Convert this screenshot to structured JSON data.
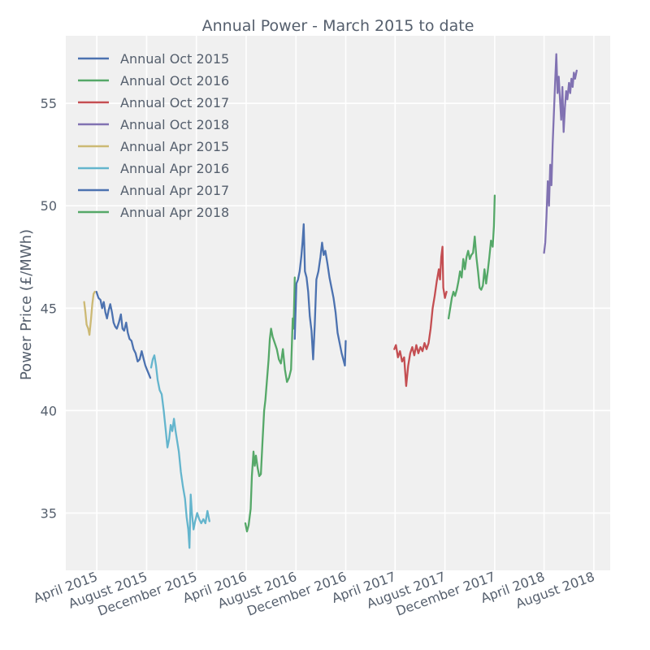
{
  "chart_data": {
    "type": "line",
    "title": "Annual Power - March 2015 to date",
    "xlabel": "",
    "ylabel": "Power Price (£/MWh)",
    "ylim": [
      32.2,
      58.3
    ],
    "xlim": [
      "2015-01-15",
      "2018-09-10"
    ],
    "yticks": [
      35,
      40,
      45,
      50,
      55
    ],
    "xticks": [
      {
        "date": "2015-04-01",
        "label": "April 2015"
      },
      {
        "date": "2015-08-01",
        "label": "August 2015"
      },
      {
        "date": "2015-12-01",
        "label": "December 2015"
      },
      {
        "date": "2016-04-01",
        "label": "April 2016"
      },
      {
        "date": "2016-08-01",
        "label": "August 2016"
      },
      {
        "date": "2016-12-01",
        "label": "December 2016"
      },
      {
        "date": "2017-04-01",
        "label": "April 2017"
      },
      {
        "date": "2017-08-01",
        "label": "August 2017"
      },
      {
        "date": "2017-12-01",
        "label": "December 2017"
      },
      {
        "date": "2018-04-01",
        "label": "April 2018"
      },
      {
        "date": "2018-08-01",
        "label": "August 2018"
      }
    ],
    "grid": true,
    "legend_position": "top-left",
    "series": [
      {
        "name": "Annual Oct 2015",
        "color": "#4c72b0",
        "points": [
          [
            "2015-03-31",
            45.8
          ],
          [
            "2015-04-05",
            45.5
          ],
          [
            "2015-04-10",
            45.4
          ],
          [
            "2015-04-14",
            45.0
          ],
          [
            "2015-04-18",
            45.3
          ],
          [
            "2015-04-22",
            44.8
          ],
          [
            "2015-04-26",
            44.5
          ],
          [
            "2015-04-30",
            44.9
          ],
          [
            "2015-05-04",
            45.2
          ],
          [
            "2015-05-08",
            44.8
          ],
          [
            "2015-05-12",
            44.3
          ],
          [
            "2015-05-16",
            44.1
          ],
          [
            "2015-05-20",
            44.0
          ],
          [
            "2015-05-25",
            44.3
          ],
          [
            "2015-05-30",
            44.7
          ],
          [
            "2015-06-03",
            44.0
          ],
          [
            "2015-06-07",
            43.9
          ],
          [
            "2015-06-12",
            44.3
          ],
          [
            "2015-06-16",
            43.8
          ],
          [
            "2015-06-20",
            43.5
          ],
          [
            "2015-06-25",
            43.4
          ],
          [
            "2015-06-30",
            43.0
          ],
          [
            "2015-07-05",
            42.8
          ],
          [
            "2015-07-10",
            42.4
          ],
          [
            "2015-07-15",
            42.5
          ],
          [
            "2015-07-20",
            42.9
          ],
          [
            "2015-07-25",
            42.5
          ],
          [
            "2015-07-29",
            42.2
          ],
          [
            "2015-08-02",
            42.0
          ],
          [
            "2015-08-06",
            41.8
          ],
          [
            "2015-08-10",
            41.6
          ]
        ]
      },
      {
        "name": "Annual Oct 2016",
        "color": "#55a868",
        "points": [
          [
            "2016-03-30",
            34.5
          ],
          [
            "2016-04-03",
            34.1
          ],
          [
            "2016-04-07",
            34.4
          ],
          [
            "2016-04-12",
            35.2
          ],
          [
            "2016-04-15",
            36.8
          ],
          [
            "2016-04-19",
            38.0
          ],
          [
            "2016-04-22",
            37.3
          ],
          [
            "2016-04-25",
            37.8
          ],
          [
            "2016-04-29",
            37.2
          ],
          [
            "2016-05-03",
            36.8
          ],
          [
            "2016-05-07",
            36.9
          ],
          [
            "2016-05-11",
            38.5
          ],
          [
            "2016-05-15",
            40.0
          ],
          [
            "2016-05-18",
            40.5
          ],
          [
            "2016-05-22",
            41.5
          ],
          [
            "2016-05-26",
            42.5
          ],
          [
            "2016-05-29",
            43.5
          ],
          [
            "2016-06-01",
            44.0
          ],
          [
            "2016-06-05",
            43.6
          ],
          [
            "2016-06-10",
            43.3
          ],
          [
            "2016-06-15",
            43.0
          ],
          [
            "2016-06-20",
            42.5
          ],
          [
            "2016-06-25",
            42.3
          ],
          [
            "2016-06-30",
            43.0
          ],
          [
            "2016-07-05",
            42.0
          ],
          [
            "2016-07-10",
            41.4
          ],
          [
            "2016-07-15",
            41.6
          ],
          [
            "2016-07-20",
            42.0
          ],
          [
            "2016-07-24",
            44.5
          ],
          [
            "2016-07-26",
            44.0
          ],
          [
            "2016-07-29",
            46.5
          ]
        ]
      },
      {
        "name": "Annual Oct 2017",
        "color": "#c44e52",
        "points": [
          [
            "2017-03-30",
            43.0
          ],
          [
            "2017-04-03",
            43.2
          ],
          [
            "2017-04-08",
            42.6
          ],
          [
            "2017-04-13",
            42.9
          ],
          [
            "2017-04-18",
            42.4
          ],
          [
            "2017-04-23",
            42.6
          ],
          [
            "2017-04-28",
            41.2
          ],
          [
            "2017-05-03",
            42.2
          ],
          [
            "2017-05-08",
            42.8
          ],
          [
            "2017-05-13",
            43.1
          ],
          [
            "2017-05-18",
            42.7
          ],
          [
            "2017-05-23",
            43.2
          ],
          [
            "2017-05-28",
            42.8
          ],
          [
            "2017-06-02",
            43.1
          ],
          [
            "2017-06-07",
            42.9
          ],
          [
            "2017-06-12",
            43.3
          ],
          [
            "2017-06-17",
            43.0
          ],
          [
            "2017-06-22",
            43.3
          ],
          [
            "2017-06-27",
            44.0
          ],
          [
            "2017-07-02",
            45.0
          ],
          [
            "2017-07-07",
            45.6
          ],
          [
            "2017-07-12",
            46.3
          ],
          [
            "2017-07-17",
            46.9
          ],
          [
            "2017-07-20",
            46.4
          ],
          [
            "2017-07-23",
            47.5
          ],
          [
            "2017-07-26",
            48.0
          ],
          [
            "2017-07-28",
            46.0
          ],
          [
            "2017-08-01",
            45.5
          ],
          [
            "2017-08-05",
            45.8
          ]
        ]
      },
      {
        "name": "Annual Oct 2018",
        "color": "#8172b2",
        "points": [
          [
            "2018-04-01",
            47.7
          ],
          [
            "2018-04-04",
            48.2
          ],
          [
            "2018-04-07",
            49.5
          ],
          [
            "2018-04-10",
            51.2
          ],
          [
            "2018-04-13",
            50.0
          ],
          [
            "2018-04-16",
            52.0
          ],
          [
            "2018-04-19",
            51.0
          ],
          [
            "2018-04-22",
            53.0
          ],
          [
            "2018-04-25",
            54.5
          ],
          [
            "2018-04-28",
            56.0
          ],
          [
            "2018-05-01",
            57.4
          ],
          [
            "2018-05-04",
            55.5
          ],
          [
            "2018-05-07",
            56.3
          ],
          [
            "2018-05-10",
            55.2
          ],
          [
            "2018-05-13",
            54.2
          ],
          [
            "2018-05-16",
            55.8
          ],
          [
            "2018-05-19",
            53.6
          ],
          [
            "2018-05-22",
            54.8
          ],
          [
            "2018-05-25",
            55.6
          ],
          [
            "2018-05-28",
            55.2
          ],
          [
            "2018-06-01",
            56.0
          ],
          [
            "2018-06-04",
            55.5
          ],
          [
            "2018-06-07",
            56.2
          ],
          [
            "2018-06-10",
            55.8
          ],
          [
            "2018-06-13",
            56.5
          ],
          [
            "2018-06-16",
            56.2
          ],
          [
            "2018-06-20",
            56.6
          ]
        ]
      },
      {
        "name": "Annual Apr 2015",
        "color": "#ccb974",
        "points": [
          [
            "2015-03-01",
            45.3
          ],
          [
            "2015-03-04",
            44.8
          ],
          [
            "2015-03-07",
            44.2
          ],
          [
            "2015-03-11",
            44.0
          ],
          [
            "2015-03-14",
            43.7
          ],
          [
            "2015-03-18",
            44.5
          ],
          [
            "2015-03-21",
            45.2
          ],
          [
            "2015-03-24",
            45.7
          ],
          [
            "2015-03-27",
            45.8
          ]
        ]
      },
      {
        "name": "Annual Apr 2016",
        "color": "#64b5cd",
        "points": [
          [
            "2015-08-12",
            42.1
          ],
          [
            "2015-08-16",
            42.5
          ],
          [
            "2015-08-20",
            42.7
          ],
          [
            "2015-08-24",
            42.2
          ],
          [
            "2015-08-28",
            41.5
          ],
          [
            "2015-09-02",
            41.0
          ],
          [
            "2015-09-07",
            40.8
          ],
          [
            "2015-09-12",
            40.0
          ],
          [
            "2015-09-17",
            39.0
          ],
          [
            "2015-09-21",
            38.2
          ],
          [
            "2015-09-25",
            38.6
          ],
          [
            "2015-09-29",
            39.3
          ],
          [
            "2015-10-03",
            39.0
          ],
          [
            "2015-10-07",
            39.6
          ],
          [
            "2015-10-11",
            39.0
          ],
          [
            "2015-10-15",
            38.5
          ],
          [
            "2015-10-19",
            38.0
          ],
          [
            "2015-10-24",
            37.0
          ],
          [
            "2015-10-29",
            36.3
          ],
          [
            "2015-11-03",
            35.7
          ],
          [
            "2015-11-07",
            34.8
          ],
          [
            "2015-11-11",
            34.2
          ],
          [
            "2015-11-14",
            33.3
          ],
          [
            "2015-11-17",
            35.9
          ],
          [
            "2015-11-20",
            35.0
          ],
          [
            "2015-11-24",
            34.2
          ],
          [
            "2015-11-28",
            34.6
          ],
          [
            "2015-12-03",
            35.0
          ],
          [
            "2015-12-08",
            34.7
          ],
          [
            "2015-12-13",
            34.5
          ],
          [
            "2015-12-18",
            34.7
          ],
          [
            "2015-12-23",
            34.5
          ],
          [
            "2015-12-28",
            35.1
          ],
          [
            "2016-01-02",
            34.6
          ]
        ]
      },
      {
        "name": "Annual Apr 2017",
        "color": "#4c72b0",
        "points": [
          [
            "2016-07-29",
            43.5
          ],
          [
            "2016-08-02",
            46.2
          ],
          [
            "2016-08-06",
            46.4
          ],
          [
            "2016-08-10",
            46.8
          ],
          [
            "2016-08-14",
            47.5
          ],
          [
            "2016-08-17",
            48.2
          ],
          [
            "2016-08-20",
            49.1
          ],
          [
            "2016-08-23",
            46.8
          ],
          [
            "2016-08-27",
            46.5
          ],
          [
            "2016-08-31",
            45.8
          ],
          [
            "2016-09-04",
            44.6
          ],
          [
            "2016-09-08",
            43.9
          ],
          [
            "2016-09-12",
            42.5
          ],
          [
            "2016-09-16",
            44.2
          ],
          [
            "2016-09-20",
            46.4
          ],
          [
            "2016-09-25",
            46.8
          ],
          [
            "2016-09-30",
            47.5
          ],
          [
            "2016-10-04",
            48.2
          ],
          [
            "2016-10-08",
            47.6
          ],
          [
            "2016-10-12",
            47.8
          ],
          [
            "2016-10-17",
            47.2
          ],
          [
            "2016-10-22",
            46.5
          ],
          [
            "2016-10-27",
            46.0
          ],
          [
            "2016-11-01",
            45.5
          ],
          [
            "2016-11-06",
            44.8
          ],
          [
            "2016-11-11",
            43.8
          ],
          [
            "2016-11-16",
            43.3
          ],
          [
            "2016-11-21",
            42.8
          ],
          [
            "2016-11-25",
            42.5
          ],
          [
            "2016-11-29",
            42.2
          ],
          [
            "2016-12-01",
            43.4
          ]
        ]
      },
      {
        "name": "Annual Apr 2018",
        "color": "#55a868",
        "points": [
          [
            "2017-08-10",
            44.5
          ],
          [
            "2017-08-14",
            45.0
          ],
          [
            "2017-08-18",
            45.5
          ],
          [
            "2017-08-22",
            45.8
          ],
          [
            "2017-08-26",
            45.6
          ],
          [
            "2017-08-30",
            45.9
          ],
          [
            "2017-09-03",
            46.3
          ],
          [
            "2017-09-07",
            46.8
          ],
          [
            "2017-09-11",
            46.5
          ],
          [
            "2017-09-15",
            47.4
          ],
          [
            "2017-09-19",
            46.9
          ],
          [
            "2017-09-23",
            47.5
          ],
          [
            "2017-09-27",
            47.8
          ],
          [
            "2017-10-01",
            47.4
          ],
          [
            "2017-10-05",
            47.6
          ],
          [
            "2017-10-09",
            47.7
          ],
          [
            "2017-10-13",
            48.5
          ],
          [
            "2017-10-17",
            47.5
          ],
          [
            "2017-10-21",
            46.8
          ],
          [
            "2017-10-25",
            46.0
          ],
          [
            "2017-10-29",
            45.9
          ],
          [
            "2017-11-02",
            46.1
          ],
          [
            "2017-11-06",
            46.9
          ],
          [
            "2017-11-10",
            46.2
          ],
          [
            "2017-11-14",
            46.8
          ],
          [
            "2017-11-18",
            47.5
          ],
          [
            "2017-11-22",
            48.3
          ],
          [
            "2017-11-26",
            48.0
          ],
          [
            "2017-11-29",
            49.0
          ],
          [
            "2017-12-01",
            50.5
          ]
        ]
      }
    ]
  }
}
